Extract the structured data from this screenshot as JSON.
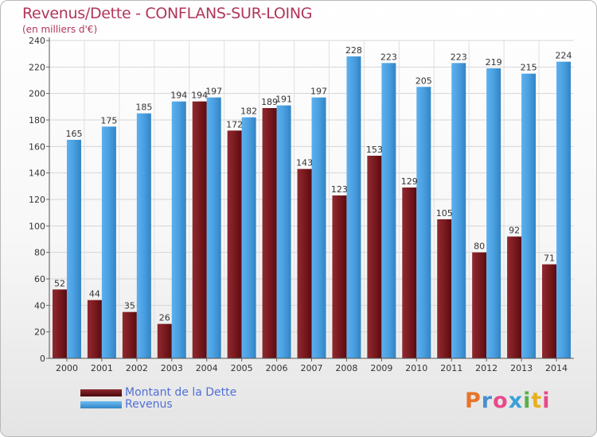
{
  "title": "Revenus/Dette - CONFLANS-SUR-LOING",
  "subtitle": "(en milliers d'€)",
  "legend": {
    "debt_label": "Montant de la Dette",
    "revenue_label": "Revenus"
  },
  "logo": {
    "text": "Proxiti",
    "colors": [
      "#e8742a",
      "#4a8fd0",
      "#e84a8a",
      "#3aa0d8",
      "#5ab04a",
      "#e8b020",
      "#e84a8a"
    ]
  },
  "colors": {
    "debt": "#7a1a1f",
    "revenue": "#4a9fe0",
    "title": "#b0365a"
  },
  "chart_data": {
    "type": "bar",
    "title": "Revenus/Dette - CONFLANS-SUR-LOING",
    "ylabel": "(en milliers d'€)",
    "xlabel": "",
    "categories": [
      "2000",
      "2001",
      "2002",
      "2003",
      "2004",
      "2005",
      "2006",
      "2007",
      "2008",
      "2009",
      "2010",
      "2011",
      "2012",
      "2013",
      "2014"
    ],
    "series": [
      {
        "name": "Montant de la Dette",
        "values": [
          52,
          44,
          35,
          26,
          194,
          172,
          189,
          143,
          123,
          153,
          129,
          105,
          80,
          92,
          71
        ]
      },
      {
        "name": "Revenus",
        "values": [
          165,
          175,
          185,
          194,
          197,
          182,
          191,
          197,
          228,
          223,
          205,
          223,
          219,
          215,
          224
        ]
      }
    ],
    "ylim": [
      0,
      240
    ],
    "yticks": [
      0,
      20,
      40,
      60,
      80,
      100,
      120,
      140,
      160,
      180,
      200,
      220,
      240
    ],
    "grid": true,
    "legend_position": "bottom-left"
  }
}
